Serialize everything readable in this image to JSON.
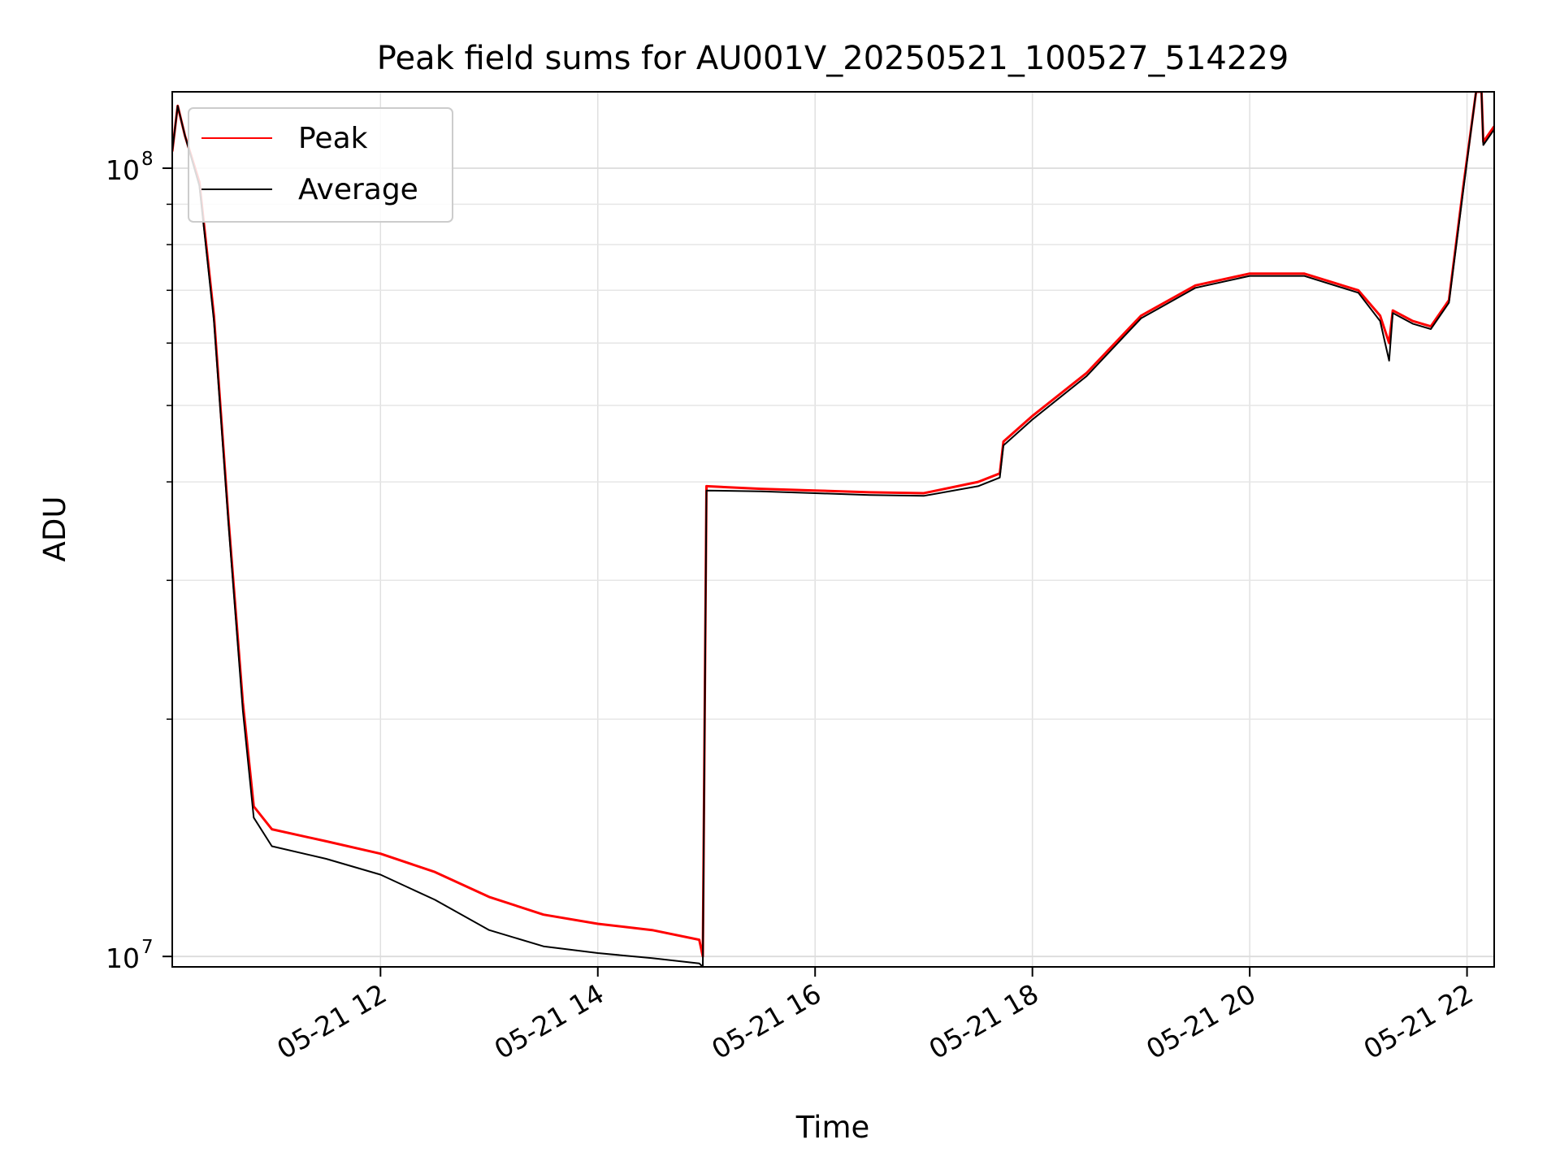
{
  "chart_data": {
    "type": "line",
    "title": "Peak field sums for AU001V_20250521_100527_514229",
    "xlabel": "Time",
    "ylabel": "ADU",
    "yscale": "log",
    "xlim": [
      "2025-05-21 10:05",
      "2025-05-21 22:15"
    ],
    "ylim": [
      9700000,
      125000000
    ],
    "xticks": [
      {
        "t": "2025-05-21 12:00",
        "label": "05-21 12"
      },
      {
        "t": "2025-05-21 14:00",
        "label": "05-21 14"
      },
      {
        "t": "2025-05-21 16:00",
        "label": "05-21 16"
      },
      {
        "t": "2025-05-21 18:00",
        "label": "05-21 18"
      },
      {
        "t": "2025-05-21 20:00",
        "label": "05-21 20"
      },
      {
        "t": "2025-05-21 22:00",
        "label": "05-21 22"
      }
    ],
    "yticks": [
      {
        "value": 10000000,
        "base": "10",
        "exp": "7"
      },
      {
        "value": 100000000,
        "base": "10",
        "exp": "8"
      }
    ],
    "grid": true,
    "legend_position": "top-left",
    "series": [
      {
        "name": "Peak",
        "color": "#ff0000",
        "points": [
          [
            "2025-05-21 10:05",
            105000000
          ],
          [
            "2025-05-21 10:08",
            120000000
          ],
          [
            "2025-05-21 10:12",
            110000000
          ],
          [
            "2025-05-21 10:20",
            96000000
          ],
          [
            "2025-05-21 10:28",
            65000000
          ],
          [
            "2025-05-21 10:36",
            36000000
          ],
          [
            "2025-05-21 10:44",
            21000000
          ],
          [
            "2025-05-21 10:50",
            15500000
          ],
          [
            "2025-05-21 11:00",
            14500000
          ],
          [
            "2025-05-21 11:30",
            14000000
          ],
          [
            "2025-05-21 12:00",
            13500000
          ],
          [
            "2025-05-21 12:30",
            12800000
          ],
          [
            "2025-05-21 13:00",
            11900000
          ],
          [
            "2025-05-21 13:30",
            11300000
          ],
          [
            "2025-05-21 14:00",
            11000000
          ],
          [
            "2025-05-21 14:30",
            10800000
          ],
          [
            "2025-05-21 14:56",
            10500000
          ],
          [
            "2025-05-21 14:58",
            10000000
          ],
          [
            "2025-05-21 15:00",
            39500000
          ],
          [
            "2025-05-21 15:30",
            39200000
          ],
          [
            "2025-05-21 16:00",
            39000000
          ],
          [
            "2025-05-21 16:30",
            38800000
          ],
          [
            "2025-05-21 17:00",
            38700000
          ],
          [
            "2025-05-21 17:30",
            40000000
          ],
          [
            "2025-05-21 17:42",
            41000000
          ],
          [
            "2025-05-21 17:44",
            45000000
          ],
          [
            "2025-05-21 18:00",
            48500000
          ],
          [
            "2025-05-21 18:30",
            55000000
          ],
          [
            "2025-05-21 19:00",
            65000000
          ],
          [
            "2025-05-21 19:30",
            71000000
          ],
          [
            "2025-05-21 20:00",
            73500000
          ],
          [
            "2025-05-21 20:30",
            73500000
          ],
          [
            "2025-05-21 21:00",
            70000000
          ],
          [
            "2025-05-21 21:12",
            65000000
          ],
          [
            "2025-05-21 21:17",
            60000000
          ],
          [
            "2025-05-21 21:19",
            66000000
          ],
          [
            "2025-05-21 21:30",
            64000000
          ],
          [
            "2025-05-21 21:40",
            63000000
          ],
          [
            "2025-05-21 21:50",
            68000000
          ],
          [
            "2025-05-21 21:58",
            95000000
          ],
          [
            "2025-05-21 22:05",
            125000000
          ],
          [
            "2025-05-21 22:08",
            125000000
          ],
          [
            "2025-05-21 22:09",
            108000000
          ],
          [
            "2025-05-21 22:15",
            113000000
          ]
        ]
      },
      {
        "name": "Average",
        "color": "#000000",
        "points": [
          [
            "2025-05-21 10:05",
            105000000
          ],
          [
            "2025-05-21 10:08",
            120000000
          ],
          [
            "2025-05-21 10:12",
            110000000
          ],
          [
            "2025-05-21 10:20",
            95000000
          ],
          [
            "2025-05-21 10:28",
            64000000
          ],
          [
            "2025-05-21 10:36",
            35500000
          ],
          [
            "2025-05-21 10:44",
            20500000
          ],
          [
            "2025-05-21 10:50",
            15000000
          ],
          [
            "2025-05-21 11:00",
            13800000
          ],
          [
            "2025-05-21 11:30",
            13300000
          ],
          [
            "2025-05-21 12:00",
            12700000
          ],
          [
            "2025-05-21 12:30",
            11800000
          ],
          [
            "2025-05-21 13:00",
            10800000
          ],
          [
            "2025-05-21 13:30",
            10300000
          ],
          [
            "2025-05-21 14:00",
            10100000
          ],
          [
            "2025-05-21 14:30",
            9950000
          ],
          [
            "2025-05-21 14:56",
            9800000
          ],
          [
            "2025-05-21 14:58",
            9700000
          ],
          [
            "2025-05-21 15:00",
            39000000
          ],
          [
            "2025-05-21 15:30",
            38900000
          ],
          [
            "2025-05-21 16:00",
            38700000
          ],
          [
            "2025-05-21 16:30",
            38500000
          ],
          [
            "2025-05-21 17:00",
            38400000
          ],
          [
            "2025-05-21 17:30",
            39500000
          ],
          [
            "2025-05-21 17:42",
            40500000
          ],
          [
            "2025-05-21 17:44",
            44500000
          ],
          [
            "2025-05-21 18:00",
            48000000
          ],
          [
            "2025-05-21 18:30",
            54500000
          ],
          [
            "2025-05-21 19:00",
            64500000
          ],
          [
            "2025-05-21 19:30",
            70500000
          ],
          [
            "2025-05-21 20:00",
            73000000
          ],
          [
            "2025-05-21 20:30",
            73000000
          ],
          [
            "2025-05-21 21:00",
            69500000
          ],
          [
            "2025-05-21 21:12",
            64000000
          ],
          [
            "2025-05-21 21:17",
            57000000
          ],
          [
            "2025-05-21 21:19",
            65500000
          ],
          [
            "2025-05-21 21:30",
            63500000
          ],
          [
            "2025-05-21 21:40",
            62500000
          ],
          [
            "2025-05-21 21:50",
            67500000
          ],
          [
            "2025-05-21 21:58",
            94000000
          ],
          [
            "2025-05-21 22:05",
            125000000
          ],
          [
            "2025-05-21 22:08",
            125000000
          ],
          [
            "2025-05-21 22:09",
            107000000
          ],
          [
            "2025-05-21 22:15",
            112000000
          ]
        ]
      }
    ]
  }
}
